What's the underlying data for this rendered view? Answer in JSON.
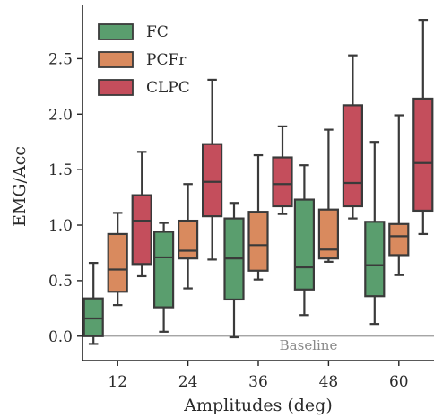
{
  "chart_data": {
    "type": "box",
    "xlabel": "Amplitudes (deg)",
    "ylabel": "EMG/Acc",
    "categories": [
      "12",
      "24",
      "36",
      "48",
      "60"
    ],
    "ylim": [
      -0.22,
      2.98
    ],
    "yticks": [
      0.0,
      0.5,
      1.0,
      1.5,
      2.0,
      2.5
    ],
    "ytick_labels": [
      "0.0",
      "0.5",
      "1.0",
      "1.5",
      "2.0",
      "2.5"
    ],
    "grid": false,
    "legend_position": "top-left",
    "baseline": {
      "value": 0.0,
      "label": "Baseline"
    },
    "series": [
      {
        "name": "FC",
        "color": "#5a9e6e",
        "boxes": [
          {
            "whislo": -0.07,
            "q1": 0.0,
            "med": 0.16,
            "q3": 0.34,
            "whishi": 0.66
          },
          {
            "whislo": 0.04,
            "q1": 0.26,
            "med": 0.71,
            "q3": 0.94,
            "whishi": 1.02
          },
          {
            "whislo": -0.01,
            "q1": 0.33,
            "med": 0.7,
            "q3": 1.06,
            "whishi": 1.2
          },
          {
            "whislo": 0.19,
            "q1": 0.42,
            "med": 0.62,
            "q3": 1.23,
            "whishi": 1.54
          },
          {
            "whislo": 0.11,
            "q1": 0.36,
            "med": 0.64,
            "q3": 1.03,
            "whishi": 1.75
          }
        ]
      },
      {
        "name": "PCFr",
        "color": "#d98a5e",
        "boxes": [
          {
            "whislo": 0.28,
            "q1": 0.4,
            "med": 0.6,
            "q3": 0.92,
            "whishi": 1.11
          },
          {
            "whislo": 0.43,
            "q1": 0.7,
            "med": 0.77,
            "q3": 1.04,
            "whishi": 1.37
          },
          {
            "whislo": 0.51,
            "q1": 0.59,
            "med": 0.82,
            "q3": 1.12,
            "whishi": 1.63
          },
          {
            "whislo": 0.67,
            "q1": 0.7,
            "med": 0.78,
            "q3": 1.14,
            "whishi": 1.86
          },
          {
            "whislo": 0.55,
            "q1": 0.73,
            "med": 0.9,
            "q3": 1.01,
            "whishi": 1.99
          }
        ]
      },
      {
        "name": "CLPC",
        "color": "#c44e5c",
        "boxes": [
          {
            "whislo": 0.54,
            "q1": 0.65,
            "med": 1.04,
            "q3": 1.27,
            "whishi": 1.66
          },
          {
            "whislo": 0.69,
            "q1": 1.08,
            "med": 1.39,
            "q3": 1.73,
            "whishi": 2.31
          },
          {
            "whislo": 1.1,
            "q1": 1.17,
            "med": 1.37,
            "q3": 1.61,
            "whishi": 1.89
          },
          {
            "whislo": 1.06,
            "q1": 1.17,
            "med": 1.38,
            "q3": 2.08,
            "whishi": 2.53
          },
          {
            "whislo": 0.92,
            "q1": 1.13,
            "med": 1.56,
            "q3": 2.14,
            "whishi": 2.85
          }
        ]
      }
    ]
  }
}
